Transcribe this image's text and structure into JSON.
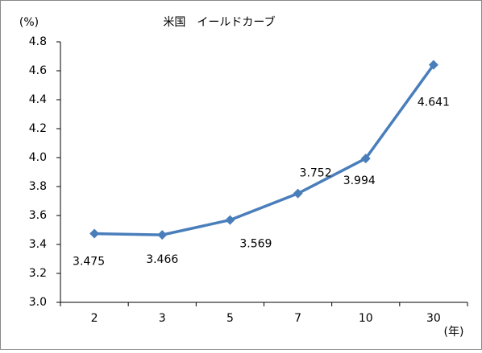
{
  "chart_data": {
    "type": "line",
    "title": "米国　イールドカーブ",
    "y_label": "(%)",
    "x_label": "(年)",
    "categories": [
      "2",
      "3",
      "5",
      "7",
      "10",
      "30"
    ],
    "series": [
      {
        "name": "米国",
        "color": "#4a7ebb",
        "values": [
          3.475,
          3.466,
          3.569,
          3.752,
          3.994,
          4.641
        ]
      }
    ],
    "ylim": [
      3.0,
      4.8
    ],
    "yticks": [
      {
        "value": 3.0,
        "label": "3.0"
      },
      3.2,
      3.4,
      3.6,
      3.8,
      {
        "value": 4.0,
        "label": "4.0"
      },
      4.2,
      4.4,
      4.6,
      4.8
    ],
    "grid": false
  }
}
